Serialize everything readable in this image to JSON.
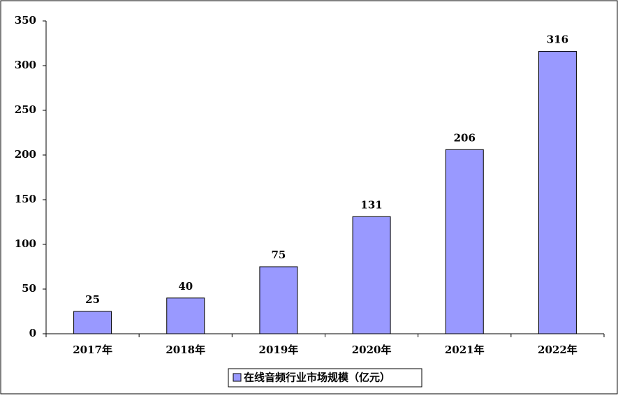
{
  "chart_data": {
    "type": "bar",
    "categories": [
      "2017年",
      "2018年",
      "2019年",
      "2020年",
      "2021年",
      "2022年"
    ],
    "series": [
      {
        "name": "在线音频行业市场规模（亿元）",
        "color": "#9999ff",
        "values": [
          25,
          40,
          75,
          131,
          206,
          316
        ]
      }
    ],
    "ylim": [
      0,
      350
    ],
    "yticks": [
      0,
      50,
      100,
      150,
      200,
      250,
      300,
      350
    ],
    "grid": false,
    "legend": "bottom"
  }
}
